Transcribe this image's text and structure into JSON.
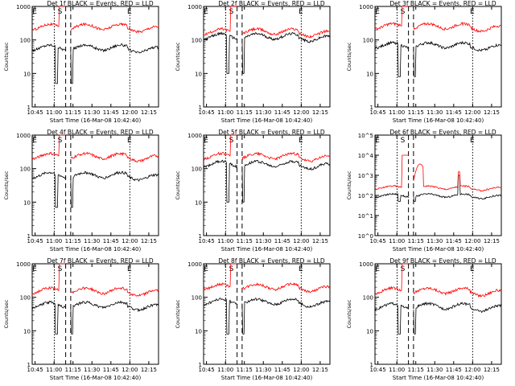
{
  "figure": {
    "start_time_label": "Start Time (16-Mar-08 10:42:40)",
    "ylabel": "Counts/sec",
    "x_ticks": [
      "10:45",
      "11:00",
      "11:15",
      "11:30",
      "11:45",
      "12:00",
      "12:15"
    ],
    "markers": {
      "left": "E",
      "mid": "S",
      "right": "E"
    },
    "colors": {
      "events": "#000000",
      "lld": "#ff0000",
      "axes": "#000000"
    }
  },
  "chart_data": [
    {
      "type": "line",
      "title": "Det 1f BLACK = Events, RED = LLD",
      "xlabel": "Start Time (16-Mar-08 10:42:40)",
      "ylabel": "Counts/sec",
      "yscale": "log",
      "ylim": [
        1,
        1000
      ],
      "ytick_labels": [
        "1",
        "10",
        "100",
        "1000"
      ],
      "x_range_min": [
        0,
        100
      ],
      "x_ticks_min": [
        2.3,
        17.3,
        32.3,
        47.3,
        62.3,
        77.3,
        92.3
      ],
      "x_tick_labels": [
        "10:45",
        "11:00",
        "11:15",
        "11:30",
        "11:45",
        "12:00",
        "12:15"
      ],
      "saa_lines_min": [
        17.5,
        26.5,
        30.5,
        77.3
      ],
      "marker_positions_min": [
        2,
        22,
        77
      ],
      "series": [
        {
          "name": "Events",
          "color": "#000000",
          "base": 60,
          "dip": 5,
          "spike": null
        },
        {
          "name": "LLD",
          "color": "#ff0000",
          "base": 250,
          "dip": null,
          "spike": 1000
        }
      ]
    },
    {
      "type": "line",
      "title": "Det 2f BLACK = Events, RED = LLD",
      "xlabel": "Start Time (16-Mar-08 10:42:40)",
      "ylabel": "Counts/sec",
      "yscale": "log",
      "ylim": [
        1,
        1000
      ],
      "ytick_labels": [
        "1",
        "10",
        "100",
        "1000"
      ],
      "x_range_min": [
        0,
        100
      ],
      "x_ticks_min": [
        2.3,
        17.3,
        32.3,
        47.3,
        62.3,
        77.3,
        92.3
      ],
      "x_tick_labels": [
        "10:45",
        "11:00",
        "11:15",
        "11:30",
        "11:45",
        "12:00",
        "12:15"
      ],
      "saa_lines_min": [
        17.5,
        26.5,
        30.5,
        77.3
      ],
      "marker_positions_min": [
        2,
        22,
        77
      ],
      "series": [
        {
          "name": "Events",
          "color": "#000000",
          "base": 130,
          "dip": 10,
          "spike": null
        },
        {
          "name": "LLD",
          "color": "#ff0000",
          "base": 180,
          "dip": null,
          "spike": 1000
        }
      ]
    },
    {
      "type": "line",
      "title": "Det 3f BLACK = Events, RED = LLD",
      "xlabel": "Start Time (16-Mar-08 10:42:40)",
      "ylabel": "Counts/sec",
      "yscale": "log",
      "ylim": [
        1,
        1000
      ],
      "ytick_labels": [
        "1",
        "10",
        "100",
        "1000"
      ],
      "x_range_min": [
        0,
        100
      ],
      "x_ticks_min": [
        2.3,
        17.3,
        32.3,
        47.3,
        62.3,
        77.3,
        92.3
      ],
      "x_tick_labels": [
        "10:45",
        "11:00",
        "11:15",
        "11:30",
        "11:45",
        "12:00",
        "12:15"
      ],
      "saa_lines_min": [
        17.5,
        26.5,
        30.5,
        77.3
      ],
      "marker_positions_min": [
        2,
        22,
        77
      ],
      "series": [
        {
          "name": "Events",
          "color": "#000000",
          "base": 70,
          "dip": 8,
          "spike": null
        },
        {
          "name": "LLD",
          "color": "#ff0000",
          "base": 260,
          "dip": null,
          "spike": 1000
        }
      ]
    },
    {
      "type": "line",
      "title": "Det 4f BLACK = Events, RED = LLD",
      "xlabel": "Start Time (16-Mar-08 10:42:40)",
      "ylabel": "Counts/sec",
      "yscale": "log",
      "ylim": [
        1,
        1000
      ],
      "ytick_labels": [
        "1",
        "10",
        "100",
        "1000"
      ],
      "x_range_min": [
        0,
        100
      ],
      "x_ticks_min": [
        2.3,
        17.3,
        32.3,
        47.3,
        62.3,
        77.3,
        92.3
      ],
      "x_tick_labels": [
        "10:45",
        "11:00",
        "11:15",
        "11:30",
        "11:45",
        "12:00",
        "12:15"
      ],
      "saa_lines_min": [
        17.5,
        26.5,
        30.5,
        77.3
      ],
      "marker_positions_min": [
        2,
        22,
        77
      ],
      "series": [
        {
          "name": "Events",
          "color": "#000000",
          "base": 65,
          "dip": 7,
          "spike": null
        },
        {
          "name": "LLD",
          "color": "#ff0000",
          "base": 240,
          "dip": null,
          "spike": 1000
        }
      ]
    },
    {
      "type": "line",
      "title": "Det 5f BLACK = Events, RED = LLD",
      "xlabel": "Start Time (16-Mar-08 10:42:40)",
      "ylabel": "Counts/sec",
      "yscale": "log",
      "ylim": [
        1,
        1000
      ],
      "ytick_labels": [
        "1",
        "10",
        "100",
        "1000"
      ],
      "x_range_min": [
        0,
        100
      ],
      "x_ticks_min": [
        2.3,
        17.3,
        32.3,
        47.3,
        62.3,
        77.3,
        92.3
      ],
      "x_tick_labels": [
        "10:45",
        "11:00",
        "11:15",
        "11:30",
        "11:45",
        "12:00",
        "12:15"
      ],
      "saa_lines_min": [
        17.5,
        26.5,
        30.5,
        77.3
      ],
      "marker_positions_min": [
        2,
        22,
        77
      ],
      "series": [
        {
          "name": "Events",
          "color": "#000000",
          "base": 140,
          "dip": 10,
          "spike": null
        },
        {
          "name": "LLD",
          "color": "#ff0000",
          "base": 240,
          "dip": null,
          "spike": 1000
        }
      ]
    },
    {
      "type": "line",
      "title": "Det 6f BLACK = Events, RED = LLD",
      "xlabel": "Start Time (16-Mar-08 10:42:40)",
      "ylabel": "Counts/sec",
      "yscale": "log",
      "ylim": [
        1,
        100000
      ],
      "ytick_labels": [
        "10^0",
        "10^1",
        "10^2",
        "10^3",
        "10^4",
        "10^5"
      ],
      "x_range_min": [
        0,
        100
      ],
      "x_ticks_min": [
        2.3,
        17.3,
        32.3,
        47.3,
        62.3,
        77.3,
        92.3
      ],
      "x_tick_labels": [
        "10:45",
        "11:00",
        "11:15",
        "11:30",
        "11:45",
        "12:00",
        "12:15"
      ],
      "saa_lines_min": [
        17.5,
        26.5,
        30.5,
        77.3
      ],
      "marker_positions_min": [
        2,
        22,
        77
      ],
      "series": [
        {
          "name": "Events",
          "color": "#000000",
          "base": 100,
          "dip": 50,
          "spike": 1000
        },
        {
          "name": "LLD",
          "color": "#ff0000",
          "base": 250,
          "dip": null,
          "spike": 10000
        }
      ]
    },
    {
      "type": "line",
      "title": "Det 7f BLACK = Events, RED = LLD",
      "xlabel": "Start Time (16-Mar-08 10:42:40)",
      "ylabel": "Counts/sec",
      "yscale": "log",
      "ylim": [
        1,
        1000
      ],
      "ytick_labels": [
        "1",
        "10",
        "100",
        "1000"
      ],
      "x_range_min": [
        0,
        100
      ],
      "x_ticks_min": [
        2.3,
        17.3,
        32.3,
        47.3,
        62.3,
        77.3,
        92.3
      ],
      "x_tick_labels": [
        "10:45",
        "11:00",
        "11:15",
        "11:30",
        "11:45",
        "12:00",
        "12:15"
      ],
      "saa_lines_min": [
        17.5,
        26.5,
        30.5,
        77.3
      ],
      "marker_positions_min": [
        2,
        22,
        77
      ],
      "series": [
        {
          "name": "Events",
          "color": "#000000",
          "base": 60,
          "dip": 8,
          "spike": null
        },
        {
          "name": "LLD",
          "color": "#ff0000",
          "base": 160,
          "dip": null,
          "spike": 1000
        }
      ]
    },
    {
      "type": "line",
      "title": "Det 8f BLACK = Events, RED = LLD",
      "xlabel": "Start Time (16-Mar-08 10:42:40)",
      "ylabel": "Counts/sec",
      "yscale": "log",
      "ylim": [
        1,
        1000
      ],
      "ytick_labels": [
        "1",
        "10",
        "100",
        "1000"
      ],
      "x_range_min": [
        0,
        100
      ],
      "x_ticks_min": [
        2.3,
        17.3,
        32.3,
        47.3,
        62.3,
        77.3,
        92.3
      ],
      "x_tick_labels": [
        "10:45",
        "11:00",
        "11:15",
        "11:30",
        "11:45",
        "12:00",
        "12:15"
      ],
      "saa_lines_min": [
        17.5,
        26.5,
        30.5,
        77.3
      ],
      "marker_positions_min": [
        2,
        22,
        77
      ],
      "series": [
        {
          "name": "Events",
          "color": "#000000",
          "base": 75,
          "dip": 8,
          "spike": null
        },
        {
          "name": "LLD",
          "color": "#ff0000",
          "base": 210,
          "dip": null,
          "spike": 1000
        }
      ]
    },
    {
      "type": "line",
      "title": "Det 9f BLACK = Events, RED = LLD",
      "xlabel": "Start Time (16-Mar-08 10:42:40)",
      "ylabel": "Counts/sec",
      "yscale": "log",
      "ylim": [
        1,
        1000
      ],
      "ytick_labels": [
        "1",
        "10",
        "100",
        "1000"
      ],
      "x_range_min": [
        0,
        100
      ],
      "x_ticks_min": [
        2.3,
        17.3,
        32.3,
        47.3,
        62.3,
        77.3,
        92.3
      ],
      "x_tick_labels": [
        "10:45",
        "11:00",
        "11:15",
        "11:30",
        "11:45",
        "12:00",
        "12:15"
      ],
      "saa_lines_min": [
        17.5,
        26.5,
        30.5,
        77.3
      ],
      "marker_positions_min": [
        2,
        22,
        77
      ],
      "series": [
        {
          "name": "Events",
          "color": "#000000",
          "base": 55,
          "dip": 8,
          "spike": null
        },
        {
          "name": "LLD",
          "color": "#ff0000",
          "base": 160,
          "dip": null,
          "spike": 1000
        }
      ]
    }
  ]
}
